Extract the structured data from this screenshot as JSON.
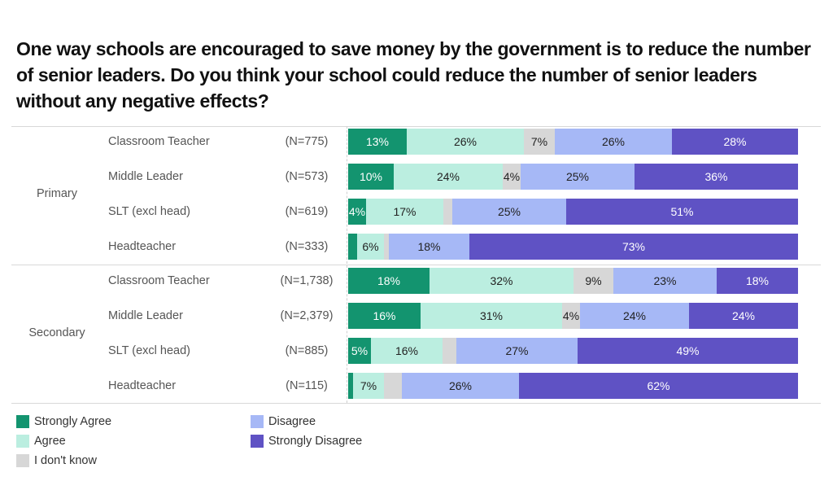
{
  "chart_data": {
    "type": "bar",
    "orientation": "horizontal-stacked-100",
    "title": "One way schools are encouraged to save money by the government is to reduce the number of senior leaders. Do you think your school could reduce the number of senior leaders without any negative effects?",
    "xlabel": "",
    "ylabel": "",
    "xlim": [
      0,
      100
    ],
    "grid": false,
    "legend_position": "bottom-left",
    "series_names": [
      "Strongly Agree",
      "Agree",
      "I don't know",
      "Disagree",
      "Strongly Disagree"
    ],
    "colors": [
      "#13946f",
      "#bbeee0",
      "#d7d7d7",
      "#a6b8f6",
      "#5f52c4"
    ],
    "label_colors": [
      "#ffffff",
      "#222222",
      "#222222",
      "#222222",
      "#ffffff"
    ],
    "groups": [
      {
        "name": "Primary",
        "rows": [
          {
            "category": "Classroom Teacher",
            "n": "(N=775)",
            "values": [
              13,
              26,
              7,
              26,
              28
            ],
            "labels": [
              "13%",
              "26%",
              "7%",
              "26%",
              "28%"
            ]
          },
          {
            "category": "Middle Leader",
            "n": "(N=573)",
            "values": [
              10,
              24,
              4,
              25,
              36
            ],
            "labels": [
              "10%",
              "24%",
              "4%",
              "25%",
              "36%"
            ]
          },
          {
            "category": "SLT (excl head)",
            "n": "(N=619)",
            "values": [
              4,
              17,
              2,
              25,
              51
            ],
            "labels": [
              "4%",
              "17%",
              "",
              "25%",
              "51%"
            ]
          },
          {
            "category": "Headteacher",
            "n": "(N=333)",
            "values": [
              2,
              6,
              1,
              18,
              73
            ],
            "labels": [
              "",
              "6%",
              "",
              "18%",
              "73%"
            ]
          }
        ]
      },
      {
        "name": "Secondary",
        "rows": [
          {
            "category": "Classroom Teacher",
            "n": "(N=1,738)",
            "values": [
              18,
              32,
              9,
              23,
              18
            ],
            "labels": [
              "18%",
              "32%",
              "9%",
              "23%",
              "18%"
            ]
          },
          {
            "category": "Middle Leader",
            "n": "(N=2,379)",
            "values": [
              16,
              31,
              4,
              24,
              24
            ],
            "labels": [
              "16%",
              "31%",
              "4%",
              "24%",
              "24%"
            ]
          },
          {
            "category": "SLT (excl head)",
            "n": "(N=885)",
            "values": [
              5,
              16,
              3,
              27,
              49
            ],
            "labels": [
              "5%",
              "16%",
              "",
              "27%",
              "49%"
            ]
          },
          {
            "category": "Headteacher",
            "n": "(N=115)",
            "values": [
              1,
              7,
              4,
              26,
              62
            ],
            "labels": [
              "",
              "7%",
              "",
              "26%",
              "62%"
            ]
          }
        ]
      }
    ]
  }
}
